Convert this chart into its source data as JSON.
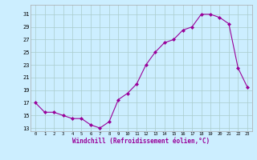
{
  "hours": [
    0,
    1,
    2,
    3,
    4,
    5,
    6,
    7,
    8,
    9,
    10,
    11,
    12,
    13,
    14,
    15,
    16,
    17,
    18,
    19,
    20,
    21,
    22,
    23
  ],
  "values": [
    17,
    15.5,
    15.5,
    15,
    14.5,
    14.5,
    13.5,
    13,
    14,
    17.5,
    18.5,
    20,
    23,
    25,
    26.5,
    27,
    28.5,
    29,
    31,
    31,
    30.5,
    29.5,
    22.5,
    19.5
  ],
  "line_color": "#990099",
  "marker": "D",
  "marker_size": 2,
  "bg_color": "#cceeff",
  "grid_color": "#aacccc",
  "xlabel": "Windchill (Refroidissement éolien,°C)",
  "yticks": [
    13,
    15,
    17,
    19,
    21,
    23,
    25,
    27,
    29,
    31
  ],
  "xticks": [
    0,
    1,
    2,
    3,
    4,
    5,
    6,
    7,
    8,
    9,
    10,
    11,
    12,
    13,
    14,
    15,
    16,
    17,
    18,
    19,
    20,
    21,
    22,
    23
  ],
  "ylim": [
    12.5,
    32.5
  ],
  "xlim": [
    -0.5,
    23.5
  ]
}
